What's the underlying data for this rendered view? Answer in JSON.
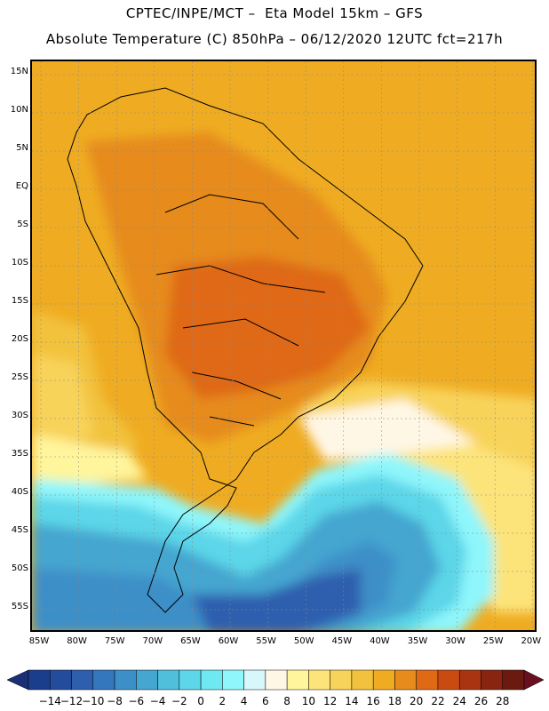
{
  "header": {
    "line1": "CPTEC/INPE/MCT –  Eta Model 15km – GFS",
    "line2": "Absolute Temperature (C) 850hPa – 06/12/2020 12UTC fct=217h"
  },
  "axes": {
    "lat_labels": [
      "15N",
      "10N",
      "5N",
      "EQ",
      "5S",
      "10S",
      "15S",
      "20S",
      "25S",
      "30S",
      "35S",
      "40S",
      "45S",
      "50S",
      "55S"
    ],
    "lon_labels": [
      "85W",
      "80W",
      "75W",
      "70W",
      "65W",
      "60W",
      "55W",
      "50W",
      "45W",
      "40W",
      "35W",
      "30W",
      "25W",
      "20W"
    ]
  },
  "colorbar": {
    "labels": [
      "-14",
      "-12",
      "-10",
      "-8",
      "-6",
      "-4",
      "-2",
      "0",
      "2",
      "4",
      "6",
      "8",
      "10",
      "12",
      "14",
      "16",
      "18",
      "20",
      "22",
      "24",
      "26",
      "28"
    ],
    "colors": [
      "#1a3d8c",
      "#244c9c",
      "#2d5fae",
      "#3577bd",
      "#3d8fc8",
      "#45a6d0",
      "#4fbfdc",
      "#5cd6e8",
      "#6ee9f2",
      "#8ff6fb",
      "#d8f7fb",
      "#fff7e6",
      "#fff59c",
      "#fde47a",
      "#f8d35a",
      "#f2c23e",
      "#efac22",
      "#e68b1c",
      "#df6915",
      "#c94b12",
      "#a93412",
      "#882410",
      "#6b1a10"
    ],
    "below_color": "#1a2f75",
    "above_color": "#6a0f20"
  }
}
